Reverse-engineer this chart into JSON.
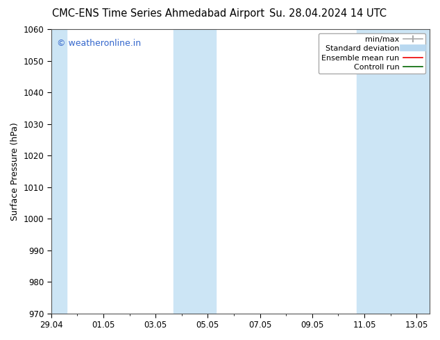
{
  "title_left": "CMC-ENS Time Series Ahmedabad Airport",
  "title_right": "Su. 28.04.2024 14 UTC",
  "ylabel": "Surface Pressure (hPa)",
  "ylim": [
    970,
    1060
  ],
  "yticks": [
    970,
    980,
    990,
    1000,
    1010,
    1020,
    1030,
    1040,
    1050,
    1060
  ],
  "xtick_labels": [
    "29.04",
    "01.05",
    "03.05",
    "05.05",
    "07.05",
    "09.05",
    "11.05",
    "13.05"
  ],
  "xtick_positions": [
    0,
    2,
    4,
    6,
    8,
    10,
    12,
    14
  ],
  "xlim": [
    0,
    14.5
  ],
  "watermark": "© weatheronline.in",
  "watermark_color": "#3366cc",
  "bg_color": "#ffffff",
  "plot_bg_color": "#ffffff",
  "shaded_bands": [
    {
      "x_start": -0.1,
      "x_end": 0.6,
      "color": "#cce5f5"
    },
    {
      "x_start": 4.7,
      "x_end": 6.3,
      "color": "#cce5f5"
    },
    {
      "x_start": 11.7,
      "x_end": 14.5,
      "color": "#cce5f5"
    }
  ],
  "legend_entries": [
    {
      "label": "min/max",
      "color": "#aaaaaa",
      "linewidth": 1.2,
      "linestyle": "-",
      "marker": true
    },
    {
      "label": "Standard deviation",
      "color": "#b8d8f0",
      "linewidth": 7,
      "linestyle": "-",
      "marker": false
    },
    {
      "label": "Ensemble mean run",
      "color": "#ee0000",
      "linewidth": 1.2,
      "linestyle": "-",
      "marker": false
    },
    {
      "label": "Controll run",
      "color": "#006600",
      "linewidth": 1.2,
      "linestyle": "-",
      "marker": false
    }
  ],
  "font_size_title": 10.5,
  "font_size_axis": 9,
  "font_size_tick": 8.5,
  "font_size_legend": 8,
  "font_size_watermark": 9
}
